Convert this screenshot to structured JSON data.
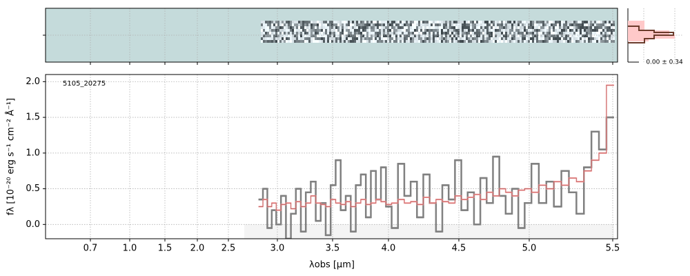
{
  "chart_data": {
    "type": "step",
    "annotation": "5105_20275",
    "xlabel": "λobs [μm]",
    "ylabel": "fλ [10⁻²⁰ erg s⁻¹ cm⁻² Å⁻¹]",
    "profile_label": "0.00 ± 0.34",
    "xlim": [
      0.36,
      5.53
    ],
    "xticks": [
      0.7,
      {
        "value": 1,
        "label": "1.0"
      },
      1.5,
      {
        "value": 2,
        "label": "2.0"
      },
      2.5,
      {
        "value": 3,
        "label": "3.0"
      },
      3.5,
      {
        "value": 4,
        "label": "4.0"
      },
      4.5,
      {
        "value": 5,
        "label": "5.0"
      },
      5.5
    ],
    "ylim": [
      -0.2,
      2.1
    ],
    "yticks": [
      {
        "value": 0,
        "label": "0.0"
      },
      0.5,
      {
        "value": 1,
        "label": "1.0"
      },
      1.5,
      {
        "value": 2,
        "label": "2.0"
      }
    ],
    "grid": true,
    "x": [
      2.83,
      2.875,
      2.92,
      2.965,
      3.01,
      3.055,
      3.1,
      3.145,
      3.19,
      3.235,
      3.28,
      3.325,
      3.37,
      3.415,
      3.46,
      3.505,
      3.55,
      3.595,
      3.64,
      3.685,
      3.73,
      3.775,
      3.82,
      3.865,
      3.91,
      3.955,
      4.0,
      4.045,
      4.09,
      4.135,
      4.18,
      4.225,
      4.27,
      4.315,
      4.36,
      4.405,
      4.45,
      4.495,
      4.54,
      4.585,
      4.63,
      4.675,
      4.72,
      4.765,
      4.81,
      4.855,
      4.9,
      4.945,
      4.99,
      5.035,
      5.08,
      5.125,
      5.17,
      5.215,
      5.26,
      5.305,
      5.35,
      5.395,
      5.44,
      5.485
    ],
    "series": [
      {
        "color": "#808080",
        "values": [
          0.35,
          0.5,
          -0.05,
          0.2,
          0.0,
          0.4,
          -0.2,
          0.15,
          0.5,
          -0.1,
          0.45,
          0.6,
          0.05,
          0.3,
          -0.15,
          0.55,
          0.9,
          0.2,
          0.4,
          -0.1,
          0.55,
          0.7,
          0.1,
          0.75,
          0.35,
          0.8,
          0.25,
          -0.05,
          0.85,
          0.4,
          0.6,
          0.1,
          0.7,
          0.3,
          -0.1,
          0.55,
          0.35,
          0.9,
          0.2,
          0.45,
          0.0,
          0.65,
          0.3,
          0.95,
          0.4,
          0.15,
          0.5,
          -0.05,
          0.3,
          0.85,
          0.3,
          0.6,
          0.25,
          0.75,
          0.45,
          0.15,
          0.8,
          1.3,
          1.05,
          1.5
        ]
      },
      {
        "color": "#ff9d9d",
        "values": [
          0.25,
          0.35,
          0.25,
          0.3,
          0.2,
          0.28,
          0.3,
          0.22,
          0.32,
          0.25,
          0.3,
          0.4,
          0.3,
          0.28,
          0.25,
          0.35,
          0.3,
          0.28,
          0.32,
          0.25,
          0.3,
          0.35,
          0.28,
          0.3,
          0.35,
          0.32,
          0.28,
          0.3,
          0.35,
          0.3,
          0.32,
          0.28,
          0.38,
          0.3,
          0.35,
          0.32,
          0.3,
          0.4,
          0.35,
          0.38,
          0.42,
          0.35,
          0.45,
          0.4,
          0.5,
          0.45,
          0.4,
          0.48,
          0.5,
          0.45,
          0.55,
          0.5,
          0.6,
          0.55,
          0.65,
          0.6,
          0.75,
          0.9,
          1.0,
          1.95
        ]
      }
    ]
  }
}
